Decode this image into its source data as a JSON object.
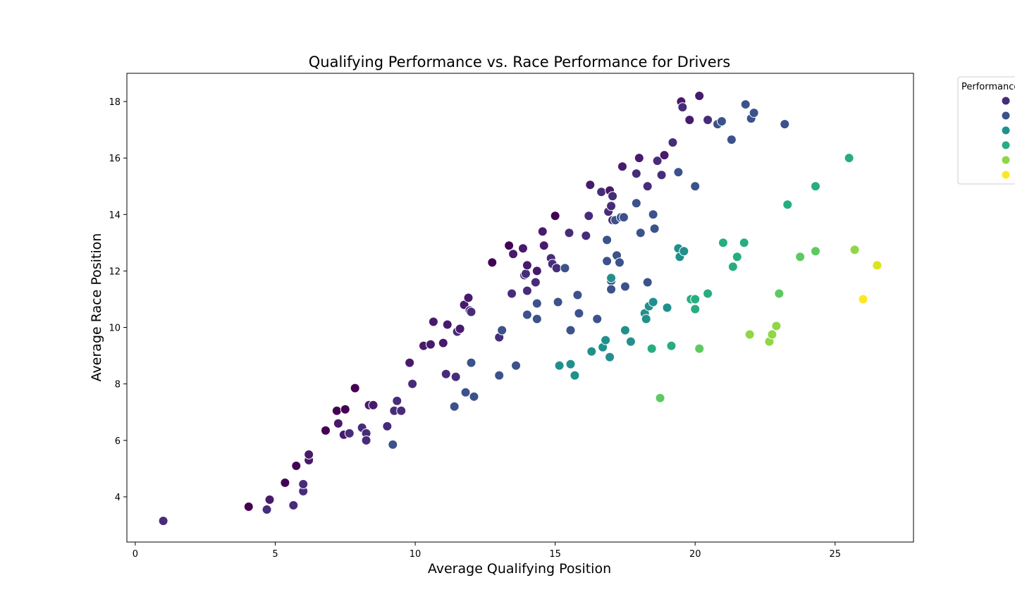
{
  "chart_data": {
    "type": "scatter",
    "title": "Qualifying Performance vs. Race Performance for Drivers",
    "xlabel": "Average Qualifying Position",
    "ylabel": "Average Race Position",
    "xlim": [
      -0.3,
      27.8
    ],
    "ylim": [
      2.4,
      19.0
    ],
    "x_ticks": [
      "0",
      "5",
      "10",
      "15",
      "20",
      "25"
    ],
    "y_ticks": [
      "4",
      "6",
      "8",
      "10",
      "12",
      "14",
      "16",
      "18"
    ],
    "grid": false,
    "legend": {
      "title": "Performance Gap",
      "placement": "outside-top-right",
      "colors": [
        "#472c7a",
        "#3b528b",
        "#21908d",
        "#27ad81",
        "#8fd744",
        "#fde725"
      ]
    },
    "points": [
      {
        "x": 1.0,
        "y": 3.15,
        "c": "#472c7a"
      },
      {
        "x": 4.05,
        "y": 3.65,
        "c": "#440154"
      },
      {
        "x": 4.8,
        "y": 3.9,
        "c": "#481a6c"
      },
      {
        "x": 4.7,
        "y": 3.55,
        "c": "#472c7a"
      },
      {
        "x": 5.65,
        "y": 3.7,
        "c": "#472c7a"
      },
      {
        "x": 5.35,
        "y": 4.5,
        "c": "#440154"
      },
      {
        "x": 6.0,
        "y": 4.2,
        "c": "#472c7a"
      },
      {
        "x": 6.0,
        "y": 4.45,
        "c": "#472c7a"
      },
      {
        "x": 5.75,
        "y": 5.1,
        "c": "#440154"
      },
      {
        "x": 6.2,
        "y": 5.3,
        "c": "#481a6c"
      },
      {
        "x": 6.2,
        "y": 5.5,
        "c": "#481a6c"
      },
      {
        "x": 6.8,
        "y": 6.35,
        "c": "#440154"
      },
      {
        "x": 7.25,
        "y": 6.6,
        "c": "#481a6c"
      },
      {
        "x": 7.45,
        "y": 6.2,
        "c": "#481a6c"
      },
      {
        "x": 7.65,
        "y": 6.25,
        "c": "#472c7a"
      },
      {
        "x": 7.2,
        "y": 7.05,
        "c": "#440154"
      },
      {
        "x": 7.5,
        "y": 7.1,
        "c": "#440154"
      },
      {
        "x": 7.85,
        "y": 7.85,
        "c": "#440154"
      },
      {
        "x": 8.1,
        "y": 6.45,
        "c": "#472c7a"
      },
      {
        "x": 8.25,
        "y": 6.25,
        "c": "#472c7a"
      },
      {
        "x": 8.25,
        "y": 6.0,
        "c": "#472c7a"
      },
      {
        "x": 8.35,
        "y": 7.25,
        "c": "#481a6c"
      },
      {
        "x": 8.5,
        "y": 7.25,
        "c": "#481a6c"
      },
      {
        "x": 9.0,
        "y": 6.5,
        "c": "#472c7a"
      },
      {
        "x": 9.2,
        "y": 5.85,
        "c": "#3b528b"
      },
      {
        "x": 9.25,
        "y": 7.05,
        "c": "#472c7a"
      },
      {
        "x": 9.35,
        "y": 7.4,
        "c": "#472c7a"
      },
      {
        "x": 9.5,
        "y": 7.05,
        "c": "#472c7a"
      },
      {
        "x": 9.8,
        "y": 8.75,
        "c": "#481a6c"
      },
      {
        "x": 9.9,
        "y": 8.0,
        "c": "#472c7a"
      },
      {
        "x": 10.3,
        "y": 9.35,
        "c": "#481a6c"
      },
      {
        "x": 10.55,
        "y": 9.4,
        "c": "#481a6c"
      },
      {
        "x": 10.65,
        "y": 10.2,
        "c": "#481a6c"
      },
      {
        "x": 11.0,
        "y": 9.45,
        "c": "#481a6c"
      },
      {
        "x": 11.1,
        "y": 8.35,
        "c": "#472c7a"
      },
      {
        "x": 11.15,
        "y": 10.1,
        "c": "#481a6c"
      },
      {
        "x": 11.4,
        "y": 7.2,
        "c": "#3b528b"
      },
      {
        "x": 11.45,
        "y": 8.25,
        "c": "#472c7a"
      },
      {
        "x": 11.5,
        "y": 9.85,
        "c": "#472c7a"
      },
      {
        "x": 11.6,
        "y": 9.95,
        "c": "#481a6c"
      },
      {
        "x": 11.75,
        "y": 10.8,
        "c": "#481a6c"
      },
      {
        "x": 11.8,
        "y": 7.7,
        "c": "#3b528b"
      },
      {
        "x": 11.9,
        "y": 11.05,
        "c": "#481a6c"
      },
      {
        "x": 11.95,
        "y": 10.6,
        "c": "#481a6c"
      },
      {
        "x": 12.0,
        "y": 10.55,
        "c": "#472c7a"
      },
      {
        "x": 12.0,
        "y": 8.75,
        "c": "#3b528b"
      },
      {
        "x": 12.1,
        "y": 7.55,
        "c": "#3b528b"
      },
      {
        "x": 12.75,
        "y": 12.3,
        "c": "#440154"
      },
      {
        "x": 13.0,
        "y": 9.65,
        "c": "#472c7a"
      },
      {
        "x": 13.0,
        "y": 8.3,
        "c": "#3b528b"
      },
      {
        "x": 13.1,
        "y": 9.9,
        "c": "#3b528b"
      },
      {
        "x": 13.35,
        "y": 12.9,
        "c": "#440154"
      },
      {
        "x": 13.45,
        "y": 11.2,
        "c": "#472c7a"
      },
      {
        "x": 13.5,
        "y": 12.6,
        "c": "#481a6c"
      },
      {
        "x": 13.6,
        "y": 8.65,
        "c": "#3b528b"
      },
      {
        "x": 13.85,
        "y": 12.8,
        "c": "#481a6c"
      },
      {
        "x": 13.9,
        "y": 11.85,
        "c": "#472c7a"
      },
      {
        "x": 13.95,
        "y": 11.9,
        "c": "#472c7a"
      },
      {
        "x": 14.0,
        "y": 12.2,
        "c": "#481a6c"
      },
      {
        "x": 14.0,
        "y": 10.45,
        "c": "#3b528b"
      },
      {
        "x": 14.0,
        "y": 11.3,
        "c": "#472c7a"
      },
      {
        "x": 14.3,
        "y": 11.6,
        "c": "#472c7a"
      },
      {
        "x": 14.35,
        "y": 12.0,
        "c": "#481a6c"
      },
      {
        "x": 14.35,
        "y": 10.85,
        "c": "#3b528b"
      },
      {
        "x": 14.35,
        "y": 10.3,
        "c": "#3b528b"
      },
      {
        "x": 14.55,
        "y": 13.4,
        "c": "#481a6c"
      },
      {
        "x": 14.6,
        "y": 12.9,
        "c": "#481a6c"
      },
      {
        "x": 14.85,
        "y": 12.45,
        "c": "#472c7a"
      },
      {
        "x": 14.9,
        "y": 12.25,
        "c": "#472c7a"
      },
      {
        "x": 15.0,
        "y": 13.95,
        "c": "#440154"
      },
      {
        "x": 15.05,
        "y": 12.1,
        "c": "#472c7a"
      },
      {
        "x": 15.1,
        "y": 10.9,
        "c": "#3b528b"
      },
      {
        "x": 15.15,
        "y": 8.65,
        "c": "#21908d"
      },
      {
        "x": 15.35,
        "y": 12.1,
        "c": "#3b528b"
      },
      {
        "x": 15.5,
        "y": 13.35,
        "c": "#472c7a"
      },
      {
        "x": 15.55,
        "y": 9.9,
        "c": "#3b528b"
      },
      {
        "x": 15.55,
        "y": 8.7,
        "c": "#21908d"
      },
      {
        "x": 15.7,
        "y": 8.3,
        "c": "#21908d"
      },
      {
        "x": 15.8,
        "y": 11.15,
        "c": "#3b528b"
      },
      {
        "x": 15.85,
        "y": 10.5,
        "c": "#3b528b"
      },
      {
        "x": 16.1,
        "y": 13.25,
        "c": "#472c7a"
      },
      {
        "x": 16.2,
        "y": 13.95,
        "c": "#472c7a"
      },
      {
        "x": 16.25,
        "y": 15.05,
        "c": "#481a6c"
      },
      {
        "x": 16.3,
        "y": 9.15,
        "c": "#21908d"
      },
      {
        "x": 16.5,
        "y": 10.3,
        "c": "#3b528b"
      },
      {
        "x": 16.65,
        "y": 14.8,
        "c": "#472c7a"
      },
      {
        "x": 16.7,
        "y": 9.3,
        "c": "#21908d"
      },
      {
        "x": 16.8,
        "y": 9.55,
        "c": "#21908d"
      },
      {
        "x": 16.85,
        "y": 13.1,
        "c": "#3b528b"
      },
      {
        "x": 16.85,
        "y": 12.35,
        "c": "#3b528b"
      },
      {
        "x": 16.9,
        "y": 14.1,
        "c": "#472c7a"
      },
      {
        "x": 16.95,
        "y": 14.85,
        "c": "#481a6c"
      },
      {
        "x": 16.95,
        "y": 8.95,
        "c": "#21908d"
      },
      {
        "x": 17.0,
        "y": 14.3,
        "c": "#472c7a"
      },
      {
        "x": 17.0,
        "y": 11.65,
        "c": "#3b528b"
      },
      {
        "x": 17.0,
        "y": 11.75,
        "c": "#21908d"
      },
      {
        "x": 17.0,
        "y": 11.35,
        "c": "#3b528b"
      },
      {
        "x": 17.05,
        "y": 14.65,
        "c": "#472c7a"
      },
      {
        "x": 17.05,
        "y": 13.8,
        "c": "#472c7a"
      },
      {
        "x": 17.15,
        "y": 13.8,
        "c": "#3b528b"
      },
      {
        "x": 17.2,
        "y": 12.55,
        "c": "#3b528b"
      },
      {
        "x": 17.3,
        "y": 12.3,
        "c": "#3b528b"
      },
      {
        "x": 17.35,
        "y": 13.9,
        "c": "#3b528b"
      },
      {
        "x": 17.4,
        "y": 15.7,
        "c": "#481a6c"
      },
      {
        "x": 17.45,
        "y": 13.9,
        "c": "#3b528b"
      },
      {
        "x": 17.5,
        "y": 11.45,
        "c": "#3b528b"
      },
      {
        "x": 17.5,
        "y": 9.9,
        "c": "#21908d"
      },
      {
        "x": 17.7,
        "y": 9.5,
        "c": "#21908d"
      },
      {
        "x": 17.9,
        "y": 15.45,
        "c": "#472c7a"
      },
      {
        "x": 17.9,
        "y": 14.4,
        "c": "#3b528b"
      },
      {
        "x": 18.0,
        "y": 16.0,
        "c": "#481a6c"
      },
      {
        "x": 18.05,
        "y": 13.35,
        "c": "#3b528b"
      },
      {
        "x": 18.2,
        "y": 10.5,
        "c": "#21908d"
      },
      {
        "x": 18.25,
        "y": 10.3,
        "c": "#21908d"
      },
      {
        "x": 18.3,
        "y": 15.0,
        "c": "#472c7a"
      },
      {
        "x": 18.3,
        "y": 11.6,
        "c": "#3b528b"
      },
      {
        "x": 18.35,
        "y": 10.75,
        "c": "#21908d"
      },
      {
        "x": 18.45,
        "y": 9.25,
        "c": "#27ad81"
      },
      {
        "x": 18.5,
        "y": 14.0,
        "c": "#3b528b"
      },
      {
        "x": 18.5,
        "y": 10.9,
        "c": "#21908d"
      },
      {
        "x": 18.55,
        "y": 13.5,
        "c": "#3b528b"
      },
      {
        "x": 18.65,
        "y": 15.9,
        "c": "#472c7a"
      },
      {
        "x": 18.75,
        "y": 7.5,
        "c": "#5ec962"
      },
      {
        "x": 18.8,
        "y": 15.4,
        "c": "#472c7a"
      },
      {
        "x": 18.9,
        "y": 16.1,
        "c": "#481a6c"
      },
      {
        "x": 19.0,
        "y": 10.7,
        "c": "#21908d"
      },
      {
        "x": 19.15,
        "y": 9.35,
        "c": "#27ad81"
      },
      {
        "x": 19.2,
        "y": 16.55,
        "c": "#472c7a"
      },
      {
        "x": 19.4,
        "y": 15.5,
        "c": "#3b528b"
      },
      {
        "x": 19.4,
        "y": 12.8,
        "c": "#21908d"
      },
      {
        "x": 19.45,
        "y": 12.5,
        "c": "#21908d"
      },
      {
        "x": 19.5,
        "y": 18.0,
        "c": "#481a6c"
      },
      {
        "x": 19.55,
        "y": 17.8,
        "c": "#472c7a"
      },
      {
        "x": 19.6,
        "y": 12.7,
        "c": "#21908d"
      },
      {
        "x": 19.8,
        "y": 17.35,
        "c": "#481a6c"
      },
      {
        "x": 19.85,
        "y": 11.0,
        "c": "#27ad81"
      },
      {
        "x": 20.0,
        "y": 15.0,
        "c": "#3b528b"
      },
      {
        "x": 20.0,
        "y": 11.0,
        "c": "#27ad81"
      },
      {
        "x": 20.0,
        "y": 10.65,
        "c": "#27ad81"
      },
      {
        "x": 20.15,
        "y": 18.2,
        "c": "#481a6c"
      },
      {
        "x": 20.15,
        "y": 9.25,
        "c": "#5ec962"
      },
      {
        "x": 20.45,
        "y": 17.35,
        "c": "#472c7a"
      },
      {
        "x": 20.45,
        "y": 11.2,
        "c": "#27ad81"
      },
      {
        "x": 20.8,
        "y": 17.2,
        "c": "#3b528b"
      },
      {
        "x": 20.95,
        "y": 17.3,
        "c": "#3b528b"
      },
      {
        "x": 21.0,
        "y": 13.0,
        "c": "#27ad81"
      },
      {
        "x": 21.3,
        "y": 16.65,
        "c": "#3b528b"
      },
      {
        "x": 21.35,
        "y": 12.15,
        "c": "#27ad81"
      },
      {
        "x": 21.5,
        "y": 12.5,
        "c": "#27ad81"
      },
      {
        "x": 21.75,
        "y": 13.0,
        "c": "#27ad81"
      },
      {
        "x": 21.8,
        "y": 17.9,
        "c": "#3b528b"
      },
      {
        "x": 21.95,
        "y": 9.75,
        "c": "#8fd744"
      },
      {
        "x": 22.0,
        "y": 17.4,
        "c": "#3b528b"
      },
      {
        "x": 22.1,
        "y": 17.6,
        "c": "#3b528b"
      },
      {
        "x": 22.65,
        "y": 9.5,
        "c": "#8fd744"
      },
      {
        "x": 22.75,
        "y": 9.75,
        "c": "#8fd744"
      },
      {
        "x": 22.9,
        "y": 10.05,
        "c": "#8fd744"
      },
      {
        "x": 23.0,
        "y": 11.2,
        "c": "#5ec962"
      },
      {
        "x": 23.2,
        "y": 17.2,
        "c": "#3b528b"
      },
      {
        "x": 23.3,
        "y": 14.35,
        "c": "#27ad81"
      },
      {
        "x": 23.75,
        "y": 12.5,
        "c": "#5ec962"
      },
      {
        "x": 24.3,
        "y": 15.0,
        "c": "#27ad81"
      },
      {
        "x": 24.3,
        "y": 12.7,
        "c": "#5ec962"
      },
      {
        "x": 25.5,
        "y": 16.0,
        "c": "#27ad81"
      },
      {
        "x": 25.7,
        "y": 12.75,
        "c": "#8fd744"
      },
      {
        "x": 26.0,
        "y": 11.0,
        "c": "#fde725"
      },
      {
        "x": 26.5,
        "y": 12.2,
        "c": "#dde318"
      }
    ]
  }
}
